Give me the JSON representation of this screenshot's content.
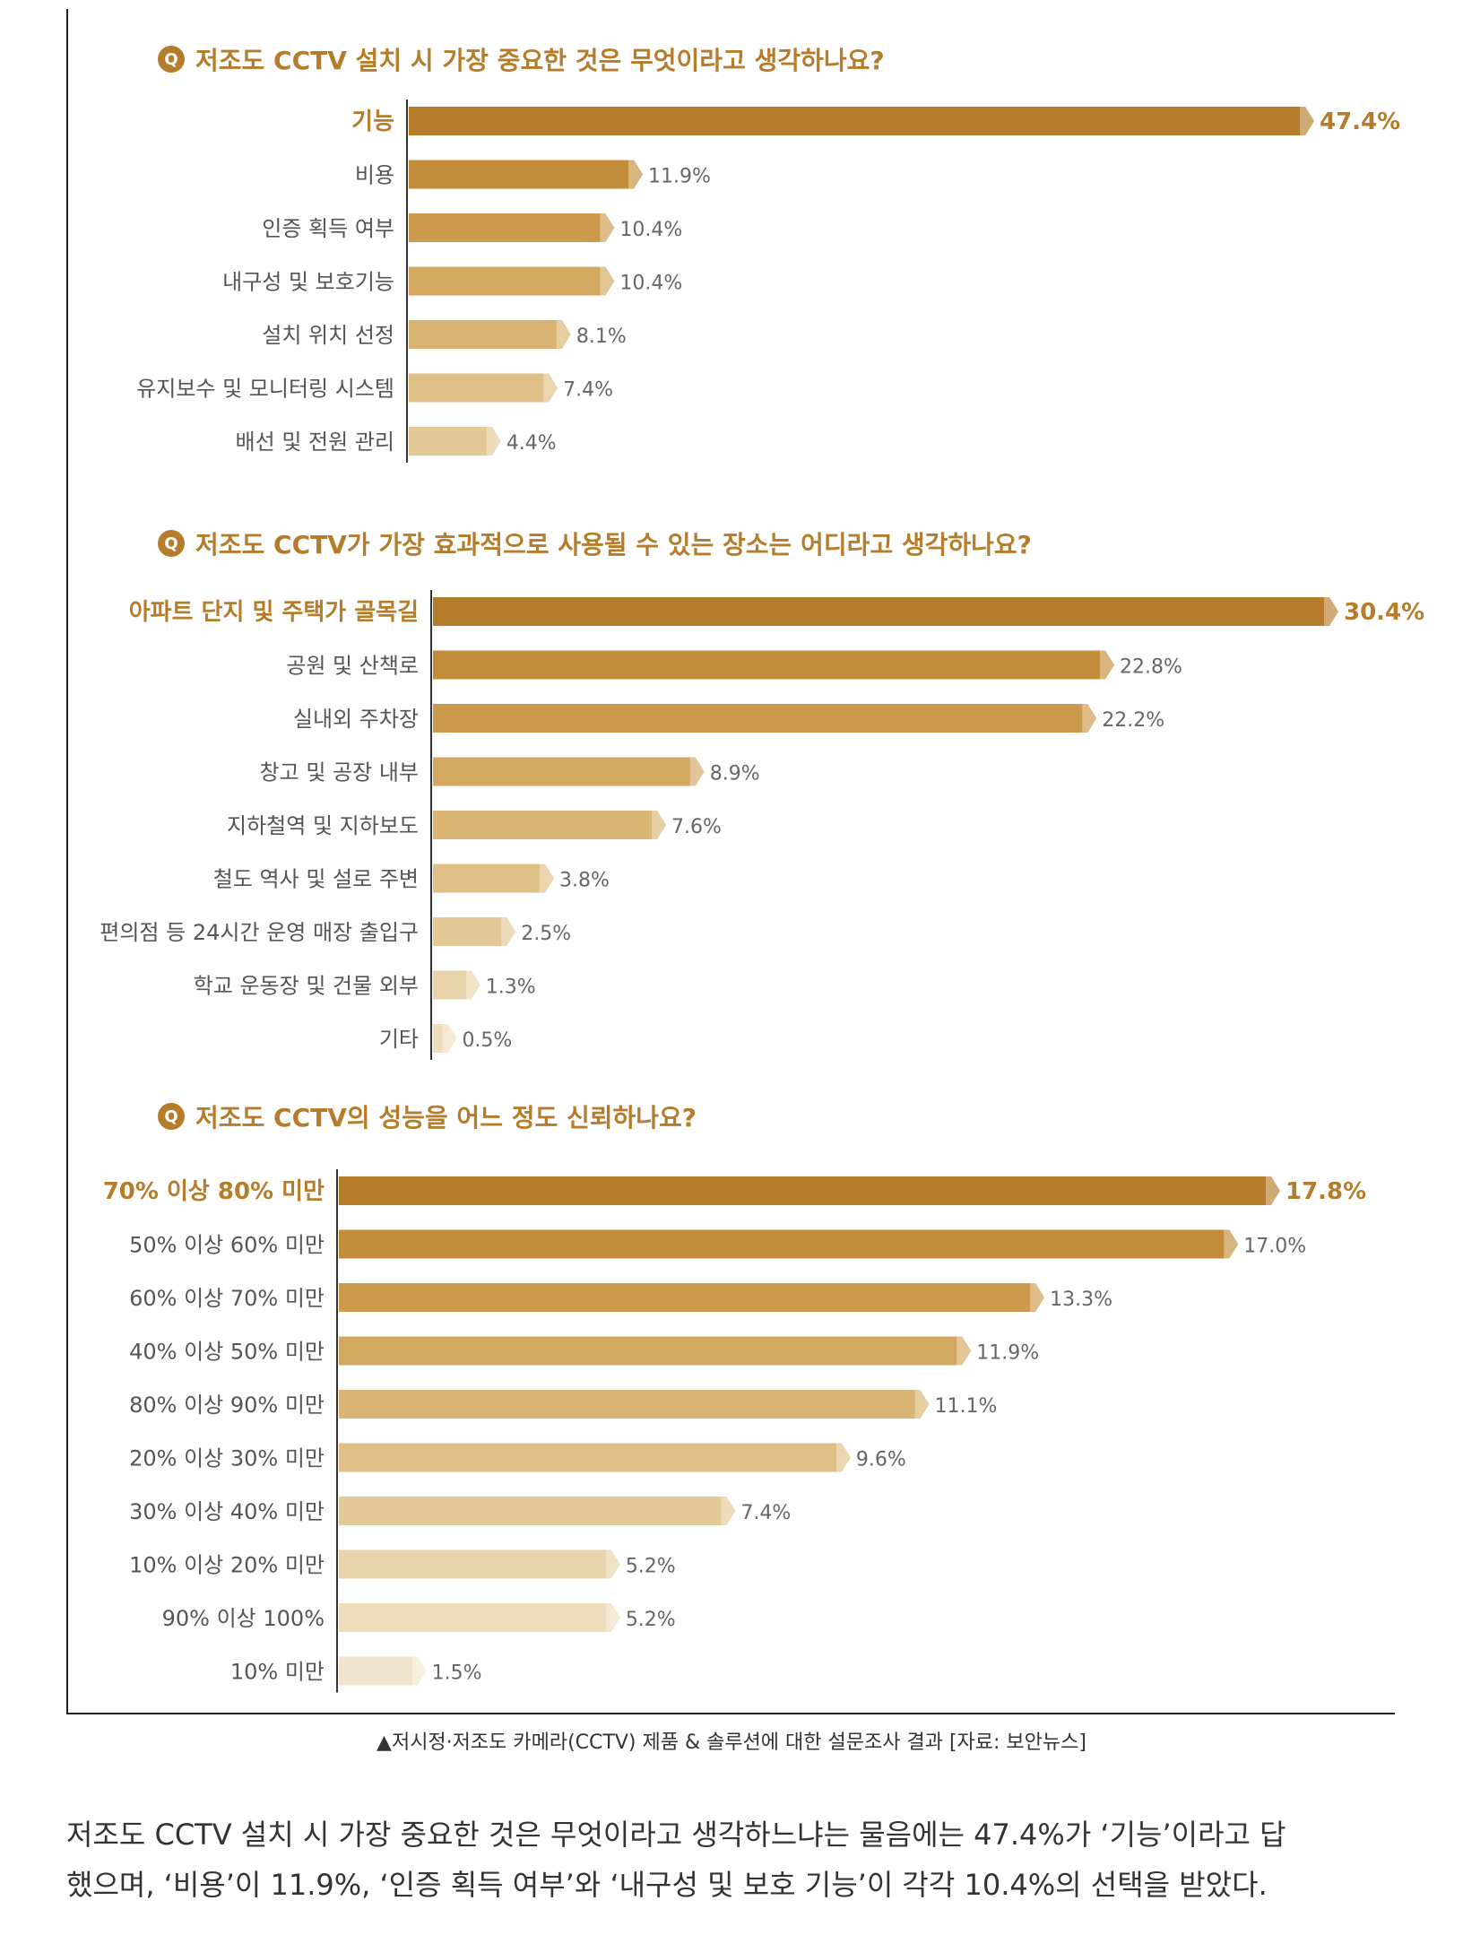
{
  "chart_data": [
    {
      "type": "bar",
      "orientation": "horizontal",
      "title": "저조도 CCTV 설치 시 가장 중요한 것은 무엇이라고 생각하나요?",
      "categories": [
        "기능",
        "비용",
        "인증 획득 여부",
        "내구성 및 보호기능",
        "설치 위치 선정",
        "유지보수 및 모니터링 시스템",
        "배선 및 전원 관리"
      ],
      "values": [
        47.4,
        11.9,
        10.4,
        10.4,
        8.1,
        7.4,
        4.4
      ],
      "value_labels": [
        "47.4%",
        "11.9%",
        "10.4%",
        "10.4%",
        "8.1%",
        "7.4%",
        "4.4%"
      ],
      "unit": "%",
      "highlight_index": 0
    },
    {
      "type": "bar",
      "orientation": "horizontal",
      "title": "저조도 CCTV가 가장 효과적으로 사용될 수 있는 장소는 어디라고 생각하나요?",
      "categories": [
        "아파트 단지 및 주택가 골목길",
        "공원 및 산책로",
        "실내외 주차장",
        "창고 및 공장 내부",
        "지하철역 및 지하보도",
        "철도 역사 및 설로 주변",
        "편의점 등 24시간 운영 매장 출입구",
        "학교 운동장 및 건물 외부",
        "기타"
      ],
      "values": [
        30.4,
        22.8,
        22.2,
        8.9,
        7.6,
        3.8,
        2.5,
        1.3,
        0.5
      ],
      "value_labels": [
        "30.4%",
        "22.8%",
        "22.2%",
        "8.9%",
        "7.6%",
        "3.8%",
        "2.5%",
        "1.3%",
        "0.5%"
      ],
      "unit": "%",
      "highlight_index": 0
    },
    {
      "type": "bar",
      "orientation": "horizontal",
      "title": "저조도 CCTV의 성능을 어느 정도 신뢰하나요?",
      "categories": [
        "70% 이상 80% 미만",
        "50% 이상 60% 미만",
        "60% 이상 70% 미만",
        "40% 이상 50% 미만",
        "80% 이상 90% 미만",
        "20% 이상 30% 미만",
        "30% 이상 40% 미만",
        "10% 이상 20% 미만",
        "90% 이상 100%",
        "10% 미만"
      ],
      "values": [
        17.8,
        17.0,
        13.3,
        11.9,
        11.1,
        9.6,
        7.4,
        5.2,
        5.2,
        1.5
      ],
      "value_labels": [
        "17.8%",
        "17.0%",
        "13.3%",
        "11.9%",
        "11.1%",
        "9.6%",
        "7.4%",
        "5.2%",
        "5.2%",
        "1.5%"
      ],
      "unit": "%",
      "highlight_index": 0
    }
  ],
  "q_icon": "Q",
  "colors": {
    "accent": "#b57d2b",
    "bar_palette": [
      "#b57d2b",
      "#c38c3b",
      "#cc9a4d",
      "#d3a860",
      "#d9b472",
      "#dfbf85",
      "#e4c998",
      "#e9d3aa",
      "#eeddbd",
      "#f2e5cd"
    ]
  },
  "caption": "▲저시정·저조도 카메라(CCTV) 제품 & 솔루션에 대한 설문조사 결과 [자료: 보안뉴스]",
  "article": {
    "line1": "저조도 CCTV 설치 시 가장 중요한 것은 무엇이라고 생각하느냐는 물음에는 47.4%가 ‘기능’이라고 답",
    "line2": "했으며, ‘비용’이 11.9%, ‘인증 획득 여부’와 ‘내구성 및 보호 기능’이 각각 10.4%의 선택을 받았다."
  }
}
